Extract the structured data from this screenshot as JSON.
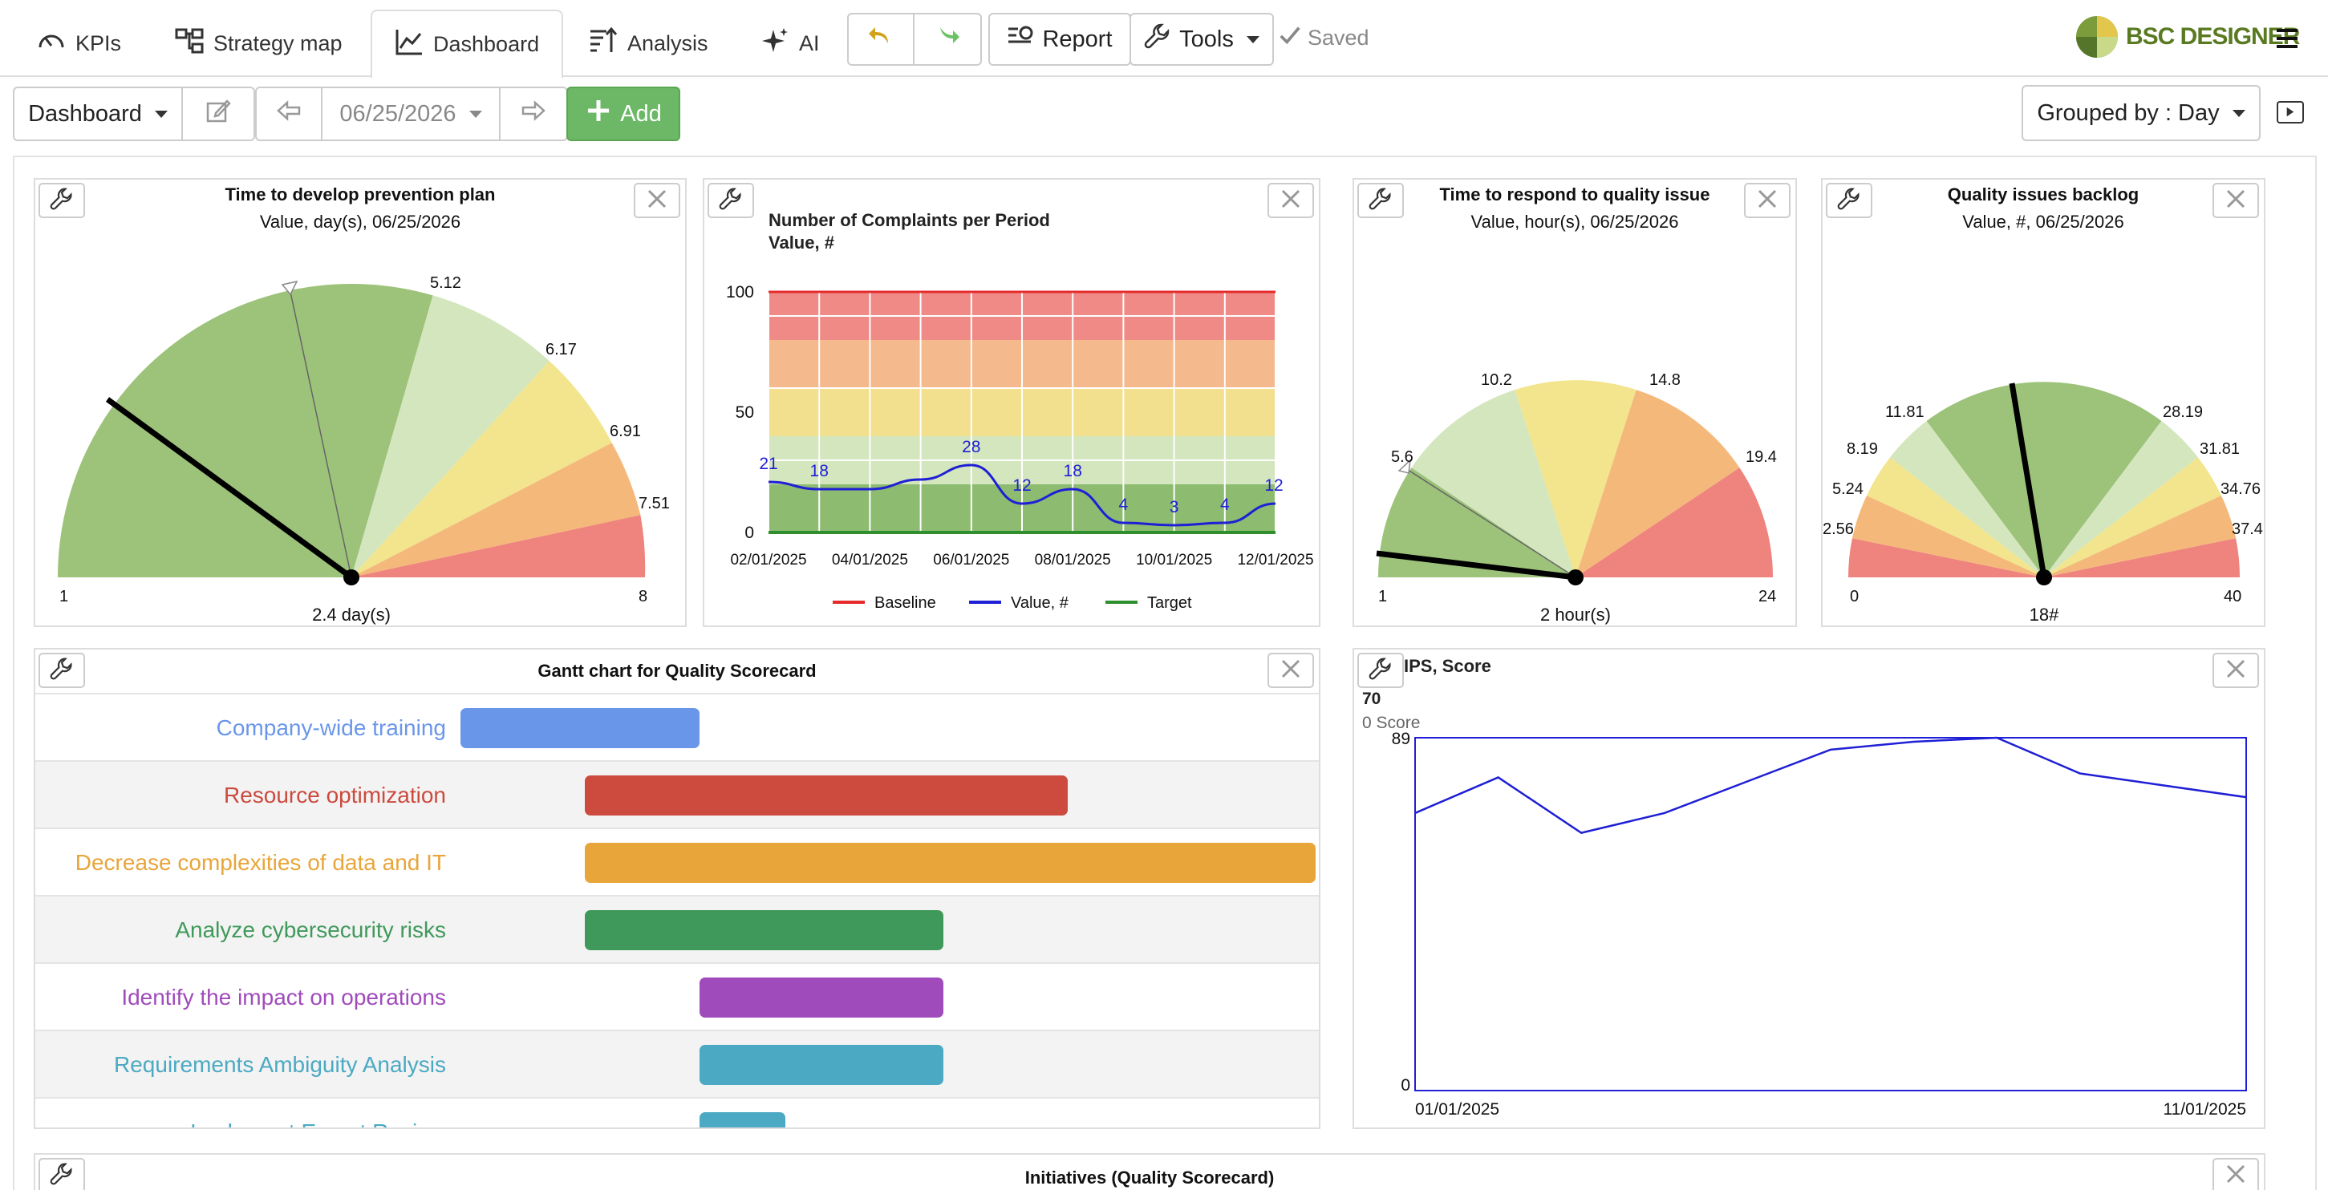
{
  "nav": {
    "tabs": [
      {
        "label": "KPIs",
        "icon": "gauge-icon"
      },
      {
        "label": "Strategy map",
        "icon": "strategy-map-icon"
      },
      {
        "label": "Dashboard",
        "icon": "line-chart-icon"
      },
      {
        "label": "Analysis",
        "icon": "sort-analysis-icon"
      },
      {
        "label": "AI",
        "icon": "sparkle-icon"
      }
    ],
    "undo_icon": "undo-icon",
    "redo_icon": "redo-icon",
    "report_label": "Report",
    "tools_label": "Tools",
    "saved_label": "Saved",
    "logo_text": "BSC DESIGNER",
    "menu_icon": "hamburger-icon"
  },
  "toolbar": {
    "dashboard_select": "Dashboard",
    "date": "06/25/2026",
    "add_label": "Add",
    "grouped_by": "Grouped by : Day"
  },
  "widgets": {
    "gauge1": {
      "title": "Time to develop prevention plan",
      "subtitle": "Value, day(s), 06/25/2026",
      "min": "1",
      "max": "8",
      "value_label": "2.4 day(s)",
      "thresholds": [
        "5.12",
        "6.17",
        "6.91",
        "7.51"
      ]
    },
    "complaints": {
      "title": "Number of Complaints per Period",
      "subtitle": "Value, #"
    },
    "gauge2": {
      "title": "Time to respond to quality issue",
      "subtitle": "Value, hour(s), 06/25/2026",
      "min": "1",
      "max": "24",
      "value_label": "2 hour(s)",
      "thresholds": [
        "5.6",
        "10.2",
        "14.8",
        "19.4"
      ]
    },
    "gauge3": {
      "title": "Quality issues backlog",
      "subtitle": "Value, #, 06/25/2026",
      "min": "0",
      "max": "40",
      "value_label": "18#",
      "thresholds": [
        "2.56",
        "5.24",
        "8.19",
        "11.81",
        "28.19",
        "31.81",
        "34.76",
        "37.4"
      ]
    },
    "gantt": {
      "title": "Gantt chart for Quality Scorecard",
      "rows": [
        {
          "label": "Company-wide training",
          "color": "#6a96ea"
        },
        {
          "label": "Resource optimization",
          "color": "#cc4a3e"
        },
        {
          "label": "Decrease complexities of data and IT",
          "color": "#e8a53a"
        },
        {
          "label": "Analyze cybersecurity risks",
          "color": "#3f995a"
        },
        {
          "label": "Identify the impact on operations",
          "color": "#a04bbb"
        },
        {
          "label": "Requirements Ambiguity Analysis",
          "color": "#4ba9c3"
        },
        {
          "label": "Implement Expert Review",
          "color": "#4ba9c3"
        }
      ]
    },
    "nps": {
      "title": "IPS, Score",
      "value": "70",
      "sub": "0 Score",
      "ymax_label": "89",
      "ymin_label": "0",
      "x_start": "01/01/2025",
      "x_end": "11/01/2025"
    },
    "initiatives": {
      "title": "Initiatives (Quality Scorecard)"
    }
  },
  "chart_data": [
    {
      "type": "line",
      "title": "Number of Complaints per Period",
      "ylabel": "Value, #",
      "ylim": [
        0,
        100
      ],
      "yticks": [
        0,
        50,
        100
      ],
      "x": [
        "02/01/2025",
        "03/01/2025",
        "04/01/2025",
        "05/01/2025",
        "06/01/2025",
        "07/01/2025",
        "08/01/2025",
        "09/01/2025",
        "10/01/2025",
        "11/01/2025",
        "12/01/2025"
      ],
      "xtick_labels": [
        "02/01/2025",
        "04/01/2025",
        "06/01/2025",
        "08/01/2025",
        "10/01/2025",
        "12/01/2025"
      ],
      "series": [
        {
          "name": "Baseline",
          "color": "#e52b2b",
          "values": [
            100,
            100,
            100,
            100,
            100,
            100,
            100,
            100,
            100,
            100,
            100
          ]
        },
        {
          "name": "Value, #",
          "color": "#1f1fd6",
          "values": [
            21,
            18,
            18,
            22,
            28,
            12,
            18,
            4,
            3,
            4,
            12
          ]
        },
        {
          "name": "Target",
          "color": "#2f8f2f",
          "values": [
            0,
            0,
            0,
            0,
            0,
            0,
            0,
            0,
            0,
            0,
            0
          ]
        }
      ],
      "data_labels": [
        21,
        18,
        28,
        12,
        18,
        4,
        3,
        4,
        12
      ],
      "bands": [
        {
          "from": 80,
          "to": 100,
          "color": "#ef8a86"
        },
        {
          "from": 60,
          "to": 80,
          "color": "#f4b98c"
        },
        {
          "from": 40,
          "to": 60,
          "color": "#f2e08e"
        },
        {
          "from": 20,
          "to": 40,
          "color": "#d3e6bd"
        },
        {
          "from": 0,
          "to": 20,
          "color": "#8dbb70"
        }
      ],
      "legend_position": "bottom"
    },
    {
      "type": "line",
      "title": "IPS, Score",
      "ylim": [
        0,
        89
      ],
      "x": [
        "01/01/2025",
        "02/01/2025",
        "03/01/2025",
        "04/01/2025",
        "05/01/2025",
        "06/01/2025",
        "07/01/2025",
        "08/01/2025",
        "09/01/2025",
        "10/01/2025",
        "11/01/2025"
      ],
      "series": [
        {
          "name": "Score",
          "color": "#1f1fd6",
          "values": [
            70,
            79,
            65,
            70,
            78,
            86,
            88,
            89,
            80,
            77,
            74
          ]
        }
      ]
    },
    {
      "type": "table",
      "title": "Gantt chart for Quality Scorecard",
      "tasks": [
        {
          "name": "Company-wide training",
          "start": 0.0,
          "end": 0.28
        },
        {
          "name": "Resource optimization",
          "start": 0.145,
          "end": 0.71
        },
        {
          "name": "Decrease complexities of data and IT",
          "start": 0.145,
          "end": 1.0
        },
        {
          "name": "Analyze cybersecurity risks",
          "start": 0.145,
          "end": 0.565
        },
        {
          "name": "Identify the impact on operations",
          "start": 0.28,
          "end": 0.565
        },
        {
          "name": "Requirements Ambiguity Analysis",
          "start": 0.28,
          "end": 0.565
        },
        {
          "name": "Implement Expert Review",
          "start": 0.28,
          "end": 0.38
        }
      ]
    }
  ]
}
